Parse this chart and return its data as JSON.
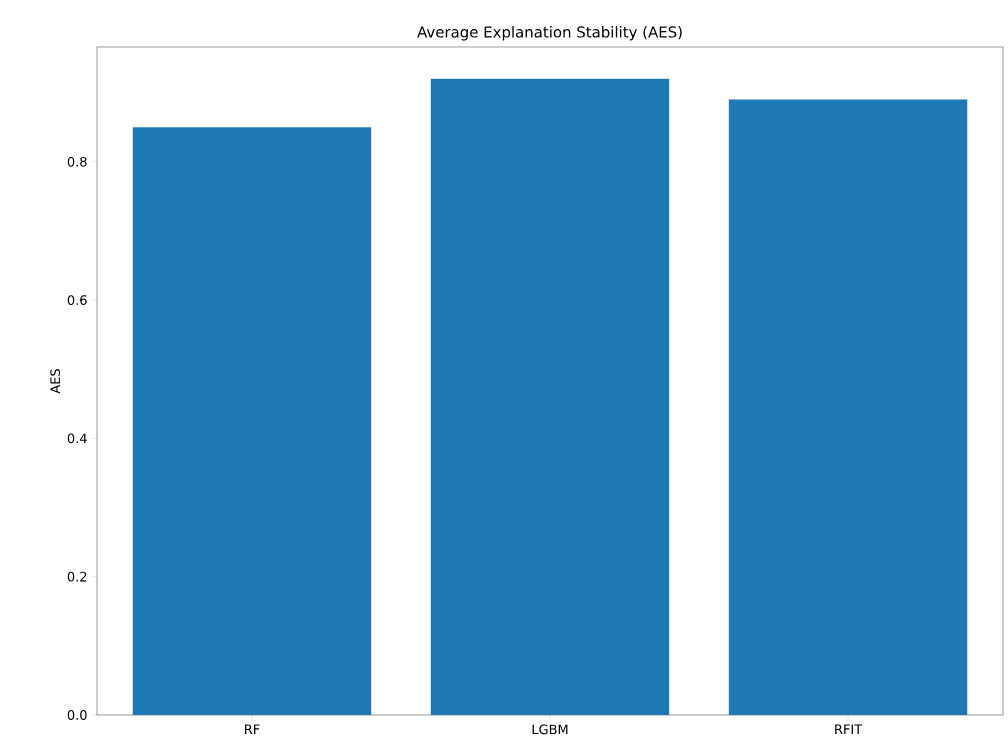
{
  "chart_data": {
    "type": "bar",
    "title": "Average Explanation Stability (AES)",
    "ylabel": "AES",
    "categories": [
      "RF",
      "LGBM",
      "RFIT"
    ],
    "values": [
      0.85,
      0.92,
      0.89
    ],
    "color": "#1f77b4",
    "ylim": [
      0,
      0.966
    ],
    "yticks": [
      {
        "value": 0,
        "label": "0.0"
      },
      {
        "value": 0.2,
        "label": "0.2"
      },
      {
        "value": 0.4,
        "label": "0.4"
      },
      {
        "value": 0.6,
        "label": "0.6"
      },
      {
        "value": 0.8,
        "label": "0.8"
      }
    ]
  }
}
